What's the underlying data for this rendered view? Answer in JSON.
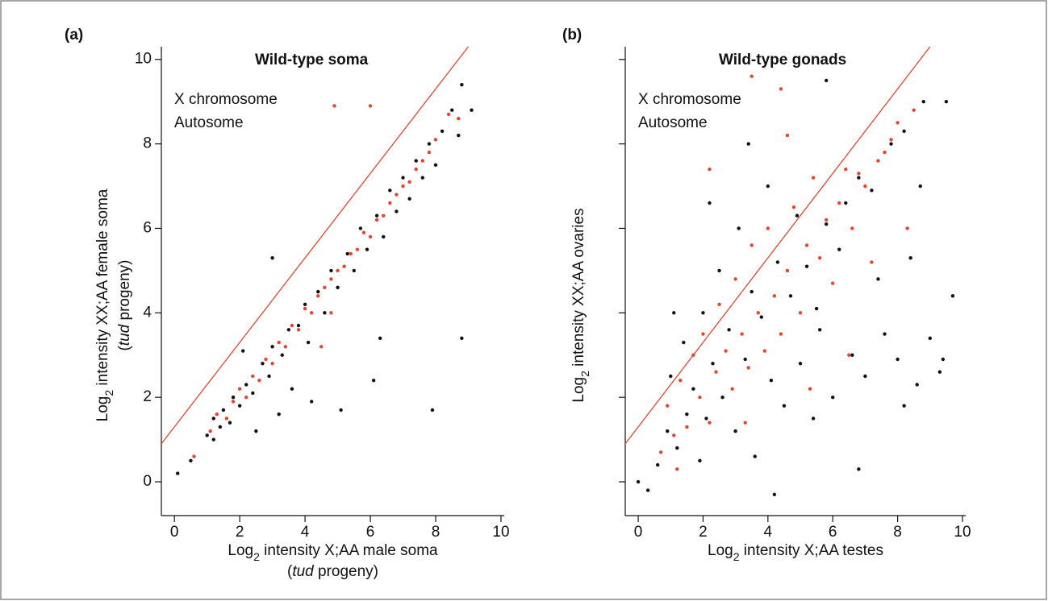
{
  "chart_data": [
    {
      "type": "scatter",
      "panel_label": "(a)",
      "title": "Wild-type soma",
      "xlabel": [
        "Log",
        "2",
        " intensity X;AA male soma"
      ],
      "xlabel_line2": [
        "(",
        "tud",
        " progeny)"
      ],
      "ylabel": [
        "Log",
        "2",
        " intensity XX;AA female soma"
      ],
      "ylabel_line2": [
        "(",
        "tud",
        " progeny)"
      ],
      "xlim": [
        -0.4,
        10.1
      ],
      "ylim": [
        -0.8,
        10.3
      ],
      "xticks": [
        0,
        2,
        4,
        6,
        8,
        10
      ],
      "yticks": [
        0,
        2,
        4,
        6,
        8,
        10
      ],
      "ytick_labels": true,
      "reference_line": {
        "slope": 1,
        "intercept": 1.3,
        "color": "#e8442a"
      },
      "series": [
        {
          "name": "X chromosome",
          "color": "#e8442a",
          "x": [
            0.6,
            1.1,
            1.3,
            1.6,
            1.8,
            2.0,
            2.2,
            2.4,
            2.6,
            2.8,
            3.0,
            3.2,
            3.4,
            3.6,
            3.8,
            4.0,
            4.2,
            4.4,
            4.6,
            4.8,
            5.0,
            5.2,
            5.4,
            5.6,
            5.8,
            6.0,
            6.2,
            6.4,
            6.6,
            6.8,
            7.0,
            7.2,
            7.4,
            7.6,
            7.8,
            8.0,
            8.4,
            8.7,
            4.9,
            6.0,
            4.8,
            4.5
          ],
          "values": [
            0.6,
            1.2,
            1.6,
            1.5,
            1.9,
            2.2,
            2.0,
            2.5,
            2.4,
            2.9,
            2.8,
            3.3,
            3.2,
            3.7,
            3.6,
            4.1,
            4.0,
            4.4,
            4.6,
            4.8,
            5.0,
            5.1,
            5.4,
            5.5,
            5.9,
            5.8,
            6.2,
            6.3,
            6.6,
            6.8,
            7.0,
            7.1,
            7.4,
            7.6,
            7.8,
            8.1,
            8.7,
            8.6,
            8.9,
            8.9,
            4.0,
            3.2
          ]
        },
        {
          "name": "Autosome",
          "color": "#111111",
          "x": [
            0.1,
            0.5,
            1.0,
            1.2,
            1.4,
            1.5,
            1.7,
            1.8,
            2.0,
            2.2,
            2.4,
            2.5,
            2.7,
            2.9,
            3.0,
            3.2,
            3.3,
            3.5,
            3.6,
            3.8,
            4.0,
            4.1,
            4.2,
            4.4,
            4.6,
            4.8,
            5.0,
            5.1,
            5.3,
            5.5,
            5.7,
            5.9,
            6.1,
            6.2,
            6.4,
            6.6,
            6.8,
            7.0,
            7.2,
            7.4,
            7.6,
            7.8,
            8.0,
            8.2,
            8.5,
            8.7,
            8.8,
            9.1,
            8.8,
            7.9,
            3.0,
            2.1,
            1.2,
            6.3
          ],
          "values": [
            0.2,
            0.5,
            1.1,
            1.5,
            1.3,
            1.7,
            1.4,
            2.0,
            1.8,
            2.3,
            2.1,
            1.2,
            2.8,
            2.5,
            3.2,
            1.6,
            3.0,
            3.6,
            2.2,
            3.7,
            4.2,
            3.3,
            1.9,
            4.5,
            4.0,
            5.0,
            4.6,
            1.7,
            5.4,
            5.0,
            6.0,
            5.5,
            2.4,
            6.3,
            5.8,
            6.9,
            6.4,
            7.2,
            6.7,
            7.6,
            7.2,
            8.0,
            7.5,
            8.3,
            8.8,
            8.2,
            9.4,
            8.8,
            3.4,
            1.7,
            5.3,
            3.1,
            1.0,
            3.4
          ]
        }
      ]
    },
    {
      "type": "scatter",
      "panel_label": "(b)",
      "title": "Wild-type gonads",
      "xlabel": [
        "Log",
        "2",
        " intensity X;AA testes"
      ],
      "ylabel": [
        "Log",
        "2",
        " intensity XX;AA ovaries"
      ],
      "xlim": [
        -0.4,
        10.1
      ],
      "ylim": [
        -0.8,
        10.3
      ],
      "xticks": [
        0,
        2,
        4,
        6,
        8,
        10
      ],
      "yticks": [
        0,
        2,
        4,
        6,
        8,
        10
      ],
      "ytick_labels": false,
      "reference_line": {
        "slope": 1,
        "intercept": 1.3,
        "color": "#e8442a"
      },
      "series": [
        {
          "name": "X chromosome",
          "color": "#e8442a",
          "x": [
            0.7,
            0.9,
            1.1,
            1.3,
            1.5,
            1.7,
            1.9,
            2.0,
            2.2,
            2.4,
            2.5,
            2.7,
            2.9,
            3.0,
            3.2,
            3.4,
            3.5,
            3.7,
            3.9,
            4.0,
            4.2,
            4.4,
            4.6,
            4.8,
            5.0,
            5.2,
            5.4,
            5.6,
            5.8,
            6.0,
            6.2,
            6.4,
            6.6,
            6.8,
            7.0,
            7.2,
            7.4,
            7.6,
            7.8,
            8.0,
            8.3,
            8.5,
            4.4,
            3.5,
            2.2,
            6.5,
            3.3,
            5.3,
            1.2,
            4.6
          ],
          "values": [
            0.7,
            1.8,
            1.1,
            2.4,
            1.3,
            3.0,
            2.0,
            3.5,
            1.4,
            2.6,
            4.2,
            3.1,
            2.2,
            4.8,
            3.5,
            2.7,
            5.6,
            4.0,
            3.1,
            6.0,
            4.4,
            3.5,
            5.0,
            6.5,
            4.0,
            5.6,
            7.2,
            5.3,
            6.2,
            4.7,
            6.6,
            7.4,
            6.0,
            7.3,
            7.0,
            5.2,
            7.6,
            7.8,
            8.1,
            8.5,
            6.0,
            8.8,
            9.3,
            9.6,
            7.4,
            3.0,
            1.4,
            2.2,
            0.3,
            8.2
          ]
        },
        {
          "name": "Autosome",
          "color": "#111111",
          "x": [
            0.0,
            0.3,
            0.6,
            0.9,
            1.0,
            1.2,
            1.4,
            1.5,
            1.7,
            1.9,
            2.0,
            2.1,
            2.3,
            2.5,
            2.6,
            2.8,
            3.0,
            3.1,
            3.3,
            3.5,
            3.6,
            3.8,
            4.0,
            4.1,
            4.3,
            4.5,
            4.7,
            4.9,
            5.0,
            5.2,
            5.4,
            5.6,
            5.8,
            6.0,
            6.2,
            6.4,
            6.6,
            6.8,
            7.0,
            7.2,
            7.4,
            7.6,
            7.8,
            8.0,
            8.2,
            8.4,
            8.6,
            8.8,
            9.0,
            9.3,
            9.5,
            9.7,
            8.2,
            5.8,
            3.4,
            2.2,
            1.1,
            6.8,
            4.2,
            8.7,
            9.4,
            5.5
          ],
          "values": [
            0.0,
            -0.2,
            0.4,
            1.2,
            2.5,
            0.8,
            3.3,
            1.6,
            2.2,
            0.5,
            4.0,
            1.5,
            2.8,
            5.0,
            2.0,
            3.6,
            1.2,
            6.0,
            2.9,
            4.5,
            0.6,
            3.9,
            7.0,
            2.4,
            5.2,
            1.8,
            4.4,
            6.3,
            2.8,
            5.1,
            1.5,
            3.6,
            6.1,
            2.0,
            5.5,
            6.6,
            3.0,
            7.2,
            2.5,
            6.9,
            4.8,
            3.5,
            8.0,
            2.9,
            8.3,
            5.3,
            2.3,
            9.0,
            3.4,
            2.6,
            9.0,
            4.4,
            1.8,
            9.5,
            8.0,
            6.6,
            4.0,
            0.3,
            -0.3,
            7.0,
            2.9,
            4.1
          ]
        }
      ]
    }
  ]
}
